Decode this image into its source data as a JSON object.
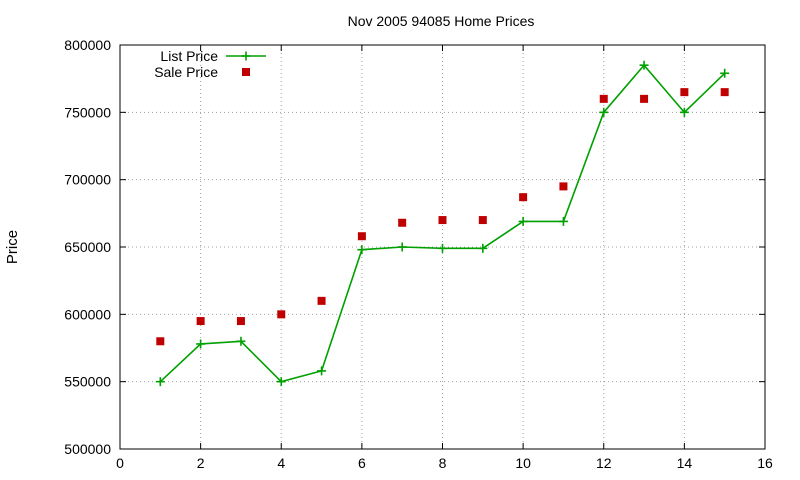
{
  "chart_data": {
    "type": "line",
    "title": "Nov 2005 94085 Home Prices",
    "xlabel": "",
    "ylabel": "Price",
    "xlim": [
      0,
      16
    ],
    "ylim": [
      500000,
      800000
    ],
    "x_ticks": [
      0,
      2,
      4,
      6,
      8,
      10,
      12,
      14,
      16
    ],
    "y_ticks": [
      500000,
      550000,
      600000,
      650000,
      700000,
      750000,
      800000
    ],
    "grid": true,
    "legend_position": "top-left",
    "series": [
      {
        "name": "List Price",
        "style": "linespoints",
        "marker": "plus",
        "color": "#00a000",
        "x": [
          1,
          2,
          3,
          4,
          5,
          6,
          7,
          8,
          9,
          10,
          11,
          12,
          13,
          14,
          15
        ],
        "values": [
          550000,
          578000,
          580000,
          550000,
          558000,
          648000,
          650000,
          649000,
          649000,
          669000,
          669000,
          750000,
          785000,
          750000,
          779000
        ]
      },
      {
        "name": "Sale Price",
        "style": "points",
        "marker": "square",
        "color": "#c00000",
        "x": [
          1,
          2,
          3,
          4,
          5,
          6,
          7,
          8,
          9,
          10,
          11,
          12,
          13,
          14,
          15
        ],
        "values": [
          580000,
          595000,
          595000,
          600000,
          610000,
          658000,
          668000,
          670000,
          670000,
          687000,
          695000,
          760000,
          760000,
          765000,
          765000
        ]
      }
    ]
  }
}
